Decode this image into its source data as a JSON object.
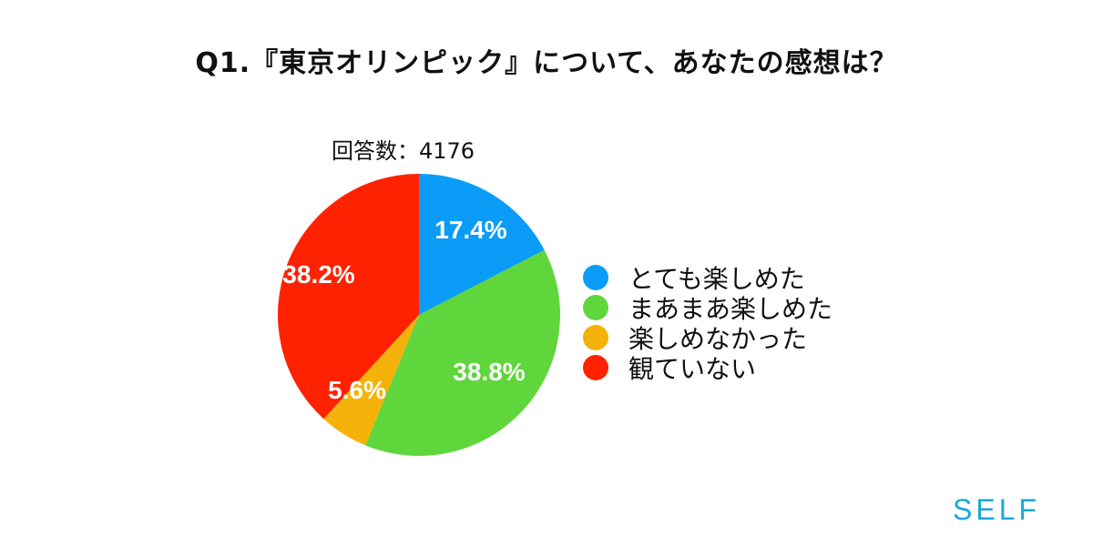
{
  "header": {
    "title": "Q1.『東京オリンピック』について、あなたの感想は？"
  },
  "response_count": "回答数：4176",
  "brand": "SELF",
  "legend": [
    {
      "label": "とても楽しめた",
      "color": "#0a9cf7"
    },
    {
      "label": "まあまあ楽しめた",
      "color": "#5fd63b"
    },
    {
      "label": "楽しめなかった",
      "color": "#f5b20a"
    },
    {
      "label": "観ていない",
      "color": "#ff2200"
    }
  ],
  "chart_data": {
    "type": "pie",
    "title": "Q1.『東京オリンピック』について、あなたの感想は？",
    "subtitle": "回答数：4176",
    "categories": [
      "とても楽しめた",
      "まあまあ楽しめた",
      "楽しめなかった",
      "観ていない"
    ],
    "values": [
      17.4,
      38.8,
      5.6,
      38.2
    ],
    "labels": [
      "17.4%",
      "38.8%",
      "5.6%",
      "38.2%"
    ],
    "colors": [
      "#0a9cf7",
      "#5fd63b",
      "#f5b20a",
      "#ff2200"
    ],
    "start_angle": "12 o'clock, clockwise",
    "legend_position": "right"
  }
}
